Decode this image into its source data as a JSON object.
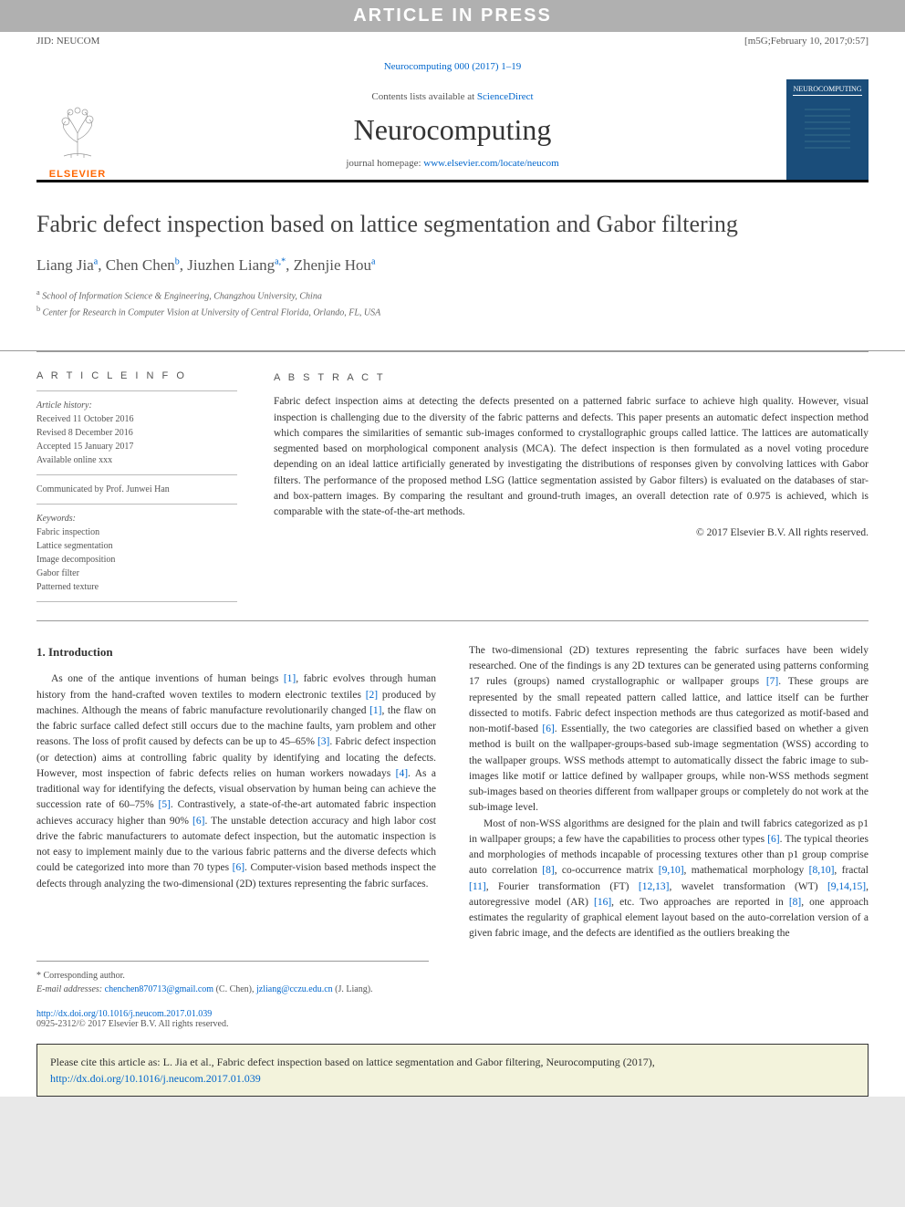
{
  "header": {
    "watermark": "ARTICLE IN PRESS",
    "jid": "JID: NEUCOM",
    "datestamp": "[m5G;February 10, 2017;0:57]",
    "citation": "Neurocomputing 000 (2017) 1–19",
    "contents_prefix": "Contents lists available at ",
    "contents_link": "ScienceDirect",
    "journal_name": "Neurocomputing",
    "homepage_prefix": "journal homepage: ",
    "homepage_url": "www.elsevier.com/locate/neucom",
    "elsevier_label": "ELSEVIER"
  },
  "article": {
    "title": "Fabric defect inspection based on lattice segmentation and Gabor filtering",
    "authors_html": "Liang Jia",
    "authors": [
      {
        "name": "Liang Jia",
        "sup": "a"
      },
      {
        "name": "Chen Chen",
        "sup": "b"
      },
      {
        "name": "Jiuzhen Liang",
        "sup": "a,*"
      },
      {
        "name": "Zhenjie Hou",
        "sup": "a"
      }
    ],
    "affiliations": [
      {
        "sup": "a",
        "text": "School of Information Science & Engineering, Changzhou University, China"
      },
      {
        "sup": "b",
        "text": "Center for Research in Computer Vision at University of Central Florida, Orlando, FL, USA"
      }
    ]
  },
  "info": {
    "head": "A R T I C L E   I N F O",
    "history_label": "Article history:",
    "received": "Received 11 October 2016",
    "revised": "Revised 8 December 2016",
    "accepted": "Accepted 15 January 2017",
    "online": "Available online xxx",
    "communicated": "Communicated by Prof. Junwei Han",
    "keywords_label": "Keywords:",
    "keywords": [
      "Fabric inspection",
      "Lattice segmentation",
      "Image decomposition",
      "Gabor filter",
      "Patterned texture"
    ]
  },
  "abstract": {
    "head": "A B S T R A C T",
    "text": "Fabric defect inspection aims at detecting the defects presented on a patterned fabric surface to achieve high quality. However, visual inspection is challenging due to the diversity of the fabric patterns and defects. This paper presents an automatic defect inspection method which compares the similarities of semantic sub-images conformed to crystallographic groups called lattice. The lattices are automatically segmented based on morphological component analysis (MCA). The defect inspection is then formulated as a novel voting procedure depending on an ideal lattice artificially generated by investigating the distributions of responses given by convolving lattices with Gabor filters. The performance of the proposed method LSG (lattice segmentation assisted by Gabor filters) is evaluated on the databases of star- and box-pattern images. By comparing the resultant and ground-truth images, an overall detection rate of 0.975 is achieved, which is comparable with the state-of-the-art methods.",
    "copyright": "© 2017 Elsevier B.V. All rights reserved."
  },
  "intro": {
    "heading": "1. Introduction",
    "col1_p1": "As one of the antique inventions of human beings [1], fabric evolves through human history from the hand-crafted woven textiles to modern electronic textiles [2] produced by machines. Although the means of fabric manufacture revolutionarily changed [1], the flaw on the fabric surface called defect still occurs due to the machine faults, yarn problem and other reasons. The loss of profit caused by defects can be up to 45–65% [3]. Fabric defect inspection (or detection) aims at controlling fabric quality by identifying and locating the defects. However, most inspection of fabric defects relies on human workers nowadays [4]. As a traditional way for identifying the defects, visual observation by human being can achieve the succession rate of 60–75% [5]. Contrastively, a state-of-the-art automated fabric inspection achieves accuracy higher than 90% [6]. The unstable detection accuracy and high labor cost drive the fabric manufacturers to automate defect inspection, but the automatic inspection is not easy to implement mainly due to the various fabric patterns and the diverse defects which could be categorized into more than 70 types [6]. Computer-vision based methods inspect the defects through analyzing the two-dimensional (2D) textures representing the fabric surfaces.",
    "col2_p1": "The two-dimensional (2D) textures representing the fabric surfaces have been widely researched. One of the findings is any 2D textures can be generated using patterns conforming 17 rules (groups) named crystallographic or wallpaper groups [7]. These groups are represented by the small repeated pattern called lattice, and lattice itself can be further dissected to motifs. Fabric defect inspection methods are thus categorized as motif-based and non-motif-based [6]. Essentially, the two categories are classified based on whether a given method is built on the wallpaper-groups-based sub-image segmentation (WSS) according to the wallpaper groups. WSS methods attempt to automatically dissect the fabric image to sub-images like motif or lattice defined by wallpaper groups, while non-WSS methods segment sub-images based on theories different from wallpaper groups or completely do not work at the sub-image level.",
    "col2_p2": "Most of non-WSS algorithms are designed for the plain and twill fabrics categorized as p1 in wallpaper groups; a few have the capabilities to process other types [6]. The typical theories and morphologies of methods incapable of processing textures other than p1 group comprise auto correlation [8], co-occurrence matrix [9,10], mathematical morphology [8,10], fractal [11], Fourier transformation (FT) [12,13], wavelet transformation (WT) [9,14,15], autoregressive model (AR) [16], etc. Two approaches are reported in [8], one approach estimates the regularity of graphical element layout based on the auto-correlation version of a given fabric image, and the defects are identified as the outliers breaking the"
  },
  "footnotes": {
    "corresponding": "* Corresponding author.",
    "email_prefix": "E-mail addresses: ",
    "email1": "chenchen870713@gmail.com",
    "email1_name": " (C. Chen), ",
    "email2": "jzliang@cczu.edu.cn",
    "email2_name": " (J. Liang)."
  },
  "doi": {
    "url": "http://dx.doi.org/10.1016/j.neucom.2017.01.039",
    "issn": "0925-2312/© 2017 Elsevier B.V. All rights reserved."
  },
  "citebox": {
    "text": "Please cite this article as: L. Jia et al., Fabric defect inspection based on lattice segmentation and Gabor filtering, Neurocomputing (2017), ",
    "url": "http://dx.doi.org/10.1016/j.neucom.2017.01.039"
  },
  "colors": {
    "link": "#0066cc",
    "orange": "#ff6600",
    "watermark_bg": "#b0b0b0",
    "citebox_bg": "#f3f3dc",
    "cover_bg": "#1a4d7a"
  },
  "refs_highlighted": [
    "[1]",
    "[2]",
    "[3]",
    "[4]",
    "[5]",
    "[6]",
    "[7]",
    "[8]",
    "[9,10]",
    "[8,10]",
    "[11]",
    "[12,13]",
    "[9,14,15]",
    "[16]"
  ]
}
